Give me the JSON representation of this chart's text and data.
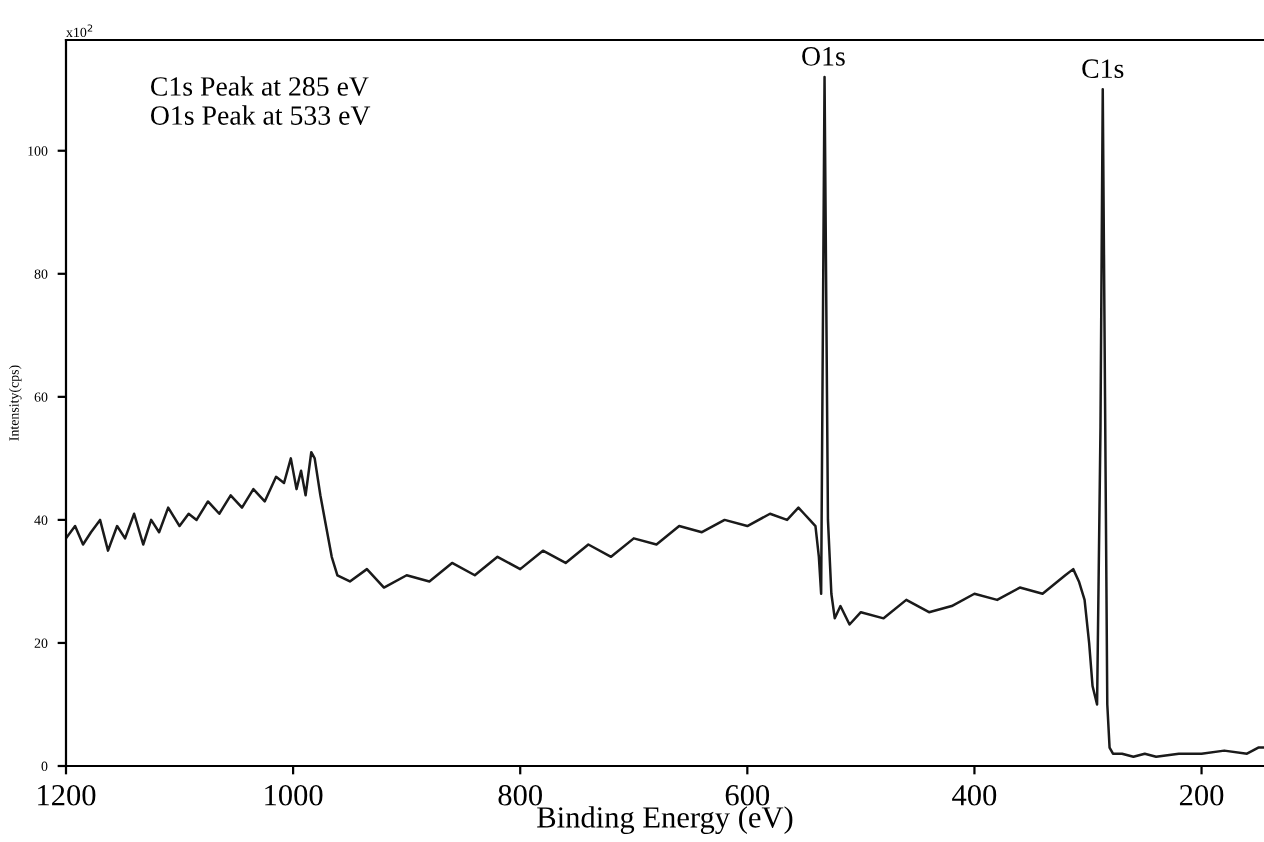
{
  "chart_data": {
    "type": "line",
    "xlabel": "Binding Energy (eV)",
    "ylabel": "Intensity(cps)",
    "annotations": [
      "x10$^{2}$",
      "C1s Peak at 285 eV\nO1s Peak at 533 eV",
      {
        "text": "O1s",
        "x": 533,
        "y": 112
      },
      {
        "text": "C1s",
        "x": 287,
        "y": 110
      }
    ],
    "series": [
      {
        "color": "#1a1a1a",
        "x": [
          1200,
          1192,
          1185,
          1178,
          1170,
          1163,
          1155,
          1148,
          1140,
          1132,
          1125,
          1118,
          1110,
          1100,
          1092,
          1085,
          1075,
          1065,
          1055,
          1045,
          1035,
          1025,
          1015,
          1008,
          1002,
          997,
          993,
          989,
          984,
          981,
          976,
          972,
          966,
          961,
          950,
          935,
          920,
          900,
          880,
          860,
          840,
          820,
          800,
          780,
          760,
          740,
          720,
          700,
          680,
          660,
          640,
          620,
          600,
          580,
          565,
          555,
          550,
          545,
          540,
          537,
          535,
          532,
          529,
          526,
          523,
          518,
          510,
          500,
          480,
          460,
          440,
          420,
          400,
          380,
          360,
          340,
          320,
          313,
          308,
          303,
          299,
          296,
          292,
          289,
          287,
          285,
          283,
          281,
          278,
          270,
          260,
          250,
          240,
          220,
          200,
          180,
          160,
          150,
          145
        ],
        "values": [
          37,
          39,
          36,
          38,
          40,
          35,
          39,
          37,
          41,
          36,
          40,
          38,
          42,
          39,
          41,
          40,
          43,
          41,
          44,
          42,
          45,
          43,
          47,
          46,
          50,
          45,
          48,
          44,
          51,
          50,
          44,
          40,
          34,
          31,
          30,
          32,
          29,
          31,
          30,
          33,
          31,
          34,
          32,
          35,
          33,
          36,
          34,
          37,
          36,
          39,
          38,
          40,
          39,
          41,
          40,
          42,
          41,
          40,
          39,
          34,
          28,
          112,
          40,
          28,
          24,
          26,
          23,
          25,
          24,
          27,
          25,
          26,
          28,
          27,
          29,
          28,
          31,
          32,
          30,
          27,
          20,
          13,
          10,
          55,
          110,
          60,
          10,
          3,
          2,
          2,
          1.5,
          2,
          1.5,
          2,
          2,
          2.5,
          2,
          3,
          3
        ]
      }
    ],
    "xlim": [
      1200,
      145
    ],
    "xticks": [
      1200,
      1000,
      800,
      600,
      400,
      200
    ],
    "ylim": [
      0,
      118
    ],
    "yticks": [
      0,
      20,
      40,
      60,
      80,
      100
    ],
    "grid": false,
    "legend": false,
    "marker": "none",
    "line_style": "solid"
  }
}
